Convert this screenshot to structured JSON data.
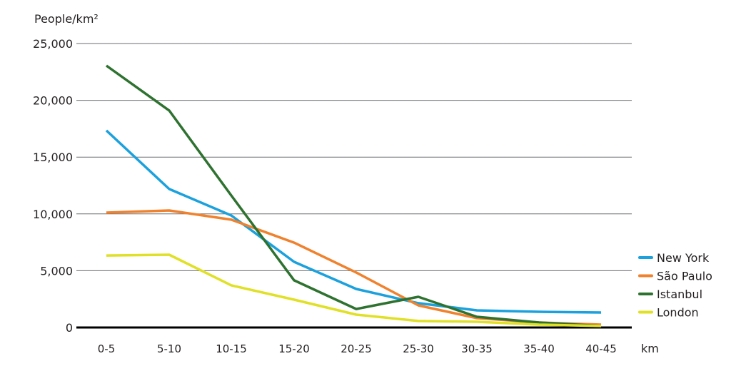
{
  "chart_data": {
    "type": "line",
    "title": "",
    "ylabel": "People/km²",
    "xlabel": "km",
    "ylim": [
      0,
      25000
    ],
    "yticks": [
      0,
      5000,
      10000,
      15000,
      20000,
      25000
    ],
    "ytick_labels": [
      "0",
      "5,000",
      "10,000",
      "15,000",
      "20,000",
      "25,000"
    ],
    "grid": true,
    "legend_position": "right",
    "categories": [
      "0-5",
      "5-10",
      "10-15",
      "15-20",
      "20-25",
      "25-30",
      "30-35",
      "35-40",
      "40-45"
    ],
    "series": [
      {
        "name": "New York",
        "color": "#1ba1dd",
        "values": [
          17340,
          12190,
          9860,
          5780,
          3390,
          2140,
          1510,
          1380,
          1320
        ]
      },
      {
        "name": "São Paulo",
        "color": "#f0812d",
        "values": [
          10110,
          10300,
          9490,
          7470,
          4840,
          1950,
          820,
          440,
          250
        ]
      },
      {
        "name": "Istanbul",
        "color": "#2e7230",
        "values": [
          23050,
          19100,
          11620,
          4150,
          1630,
          2700,
          940,
          440,
          130
        ]
      },
      {
        "name": "London",
        "color": "#e0e026",
        "values": [
          6340,
          6410,
          3710,
          2450,
          1130,
          570,
          500,
          250,
          130
        ]
      }
    ]
  }
}
